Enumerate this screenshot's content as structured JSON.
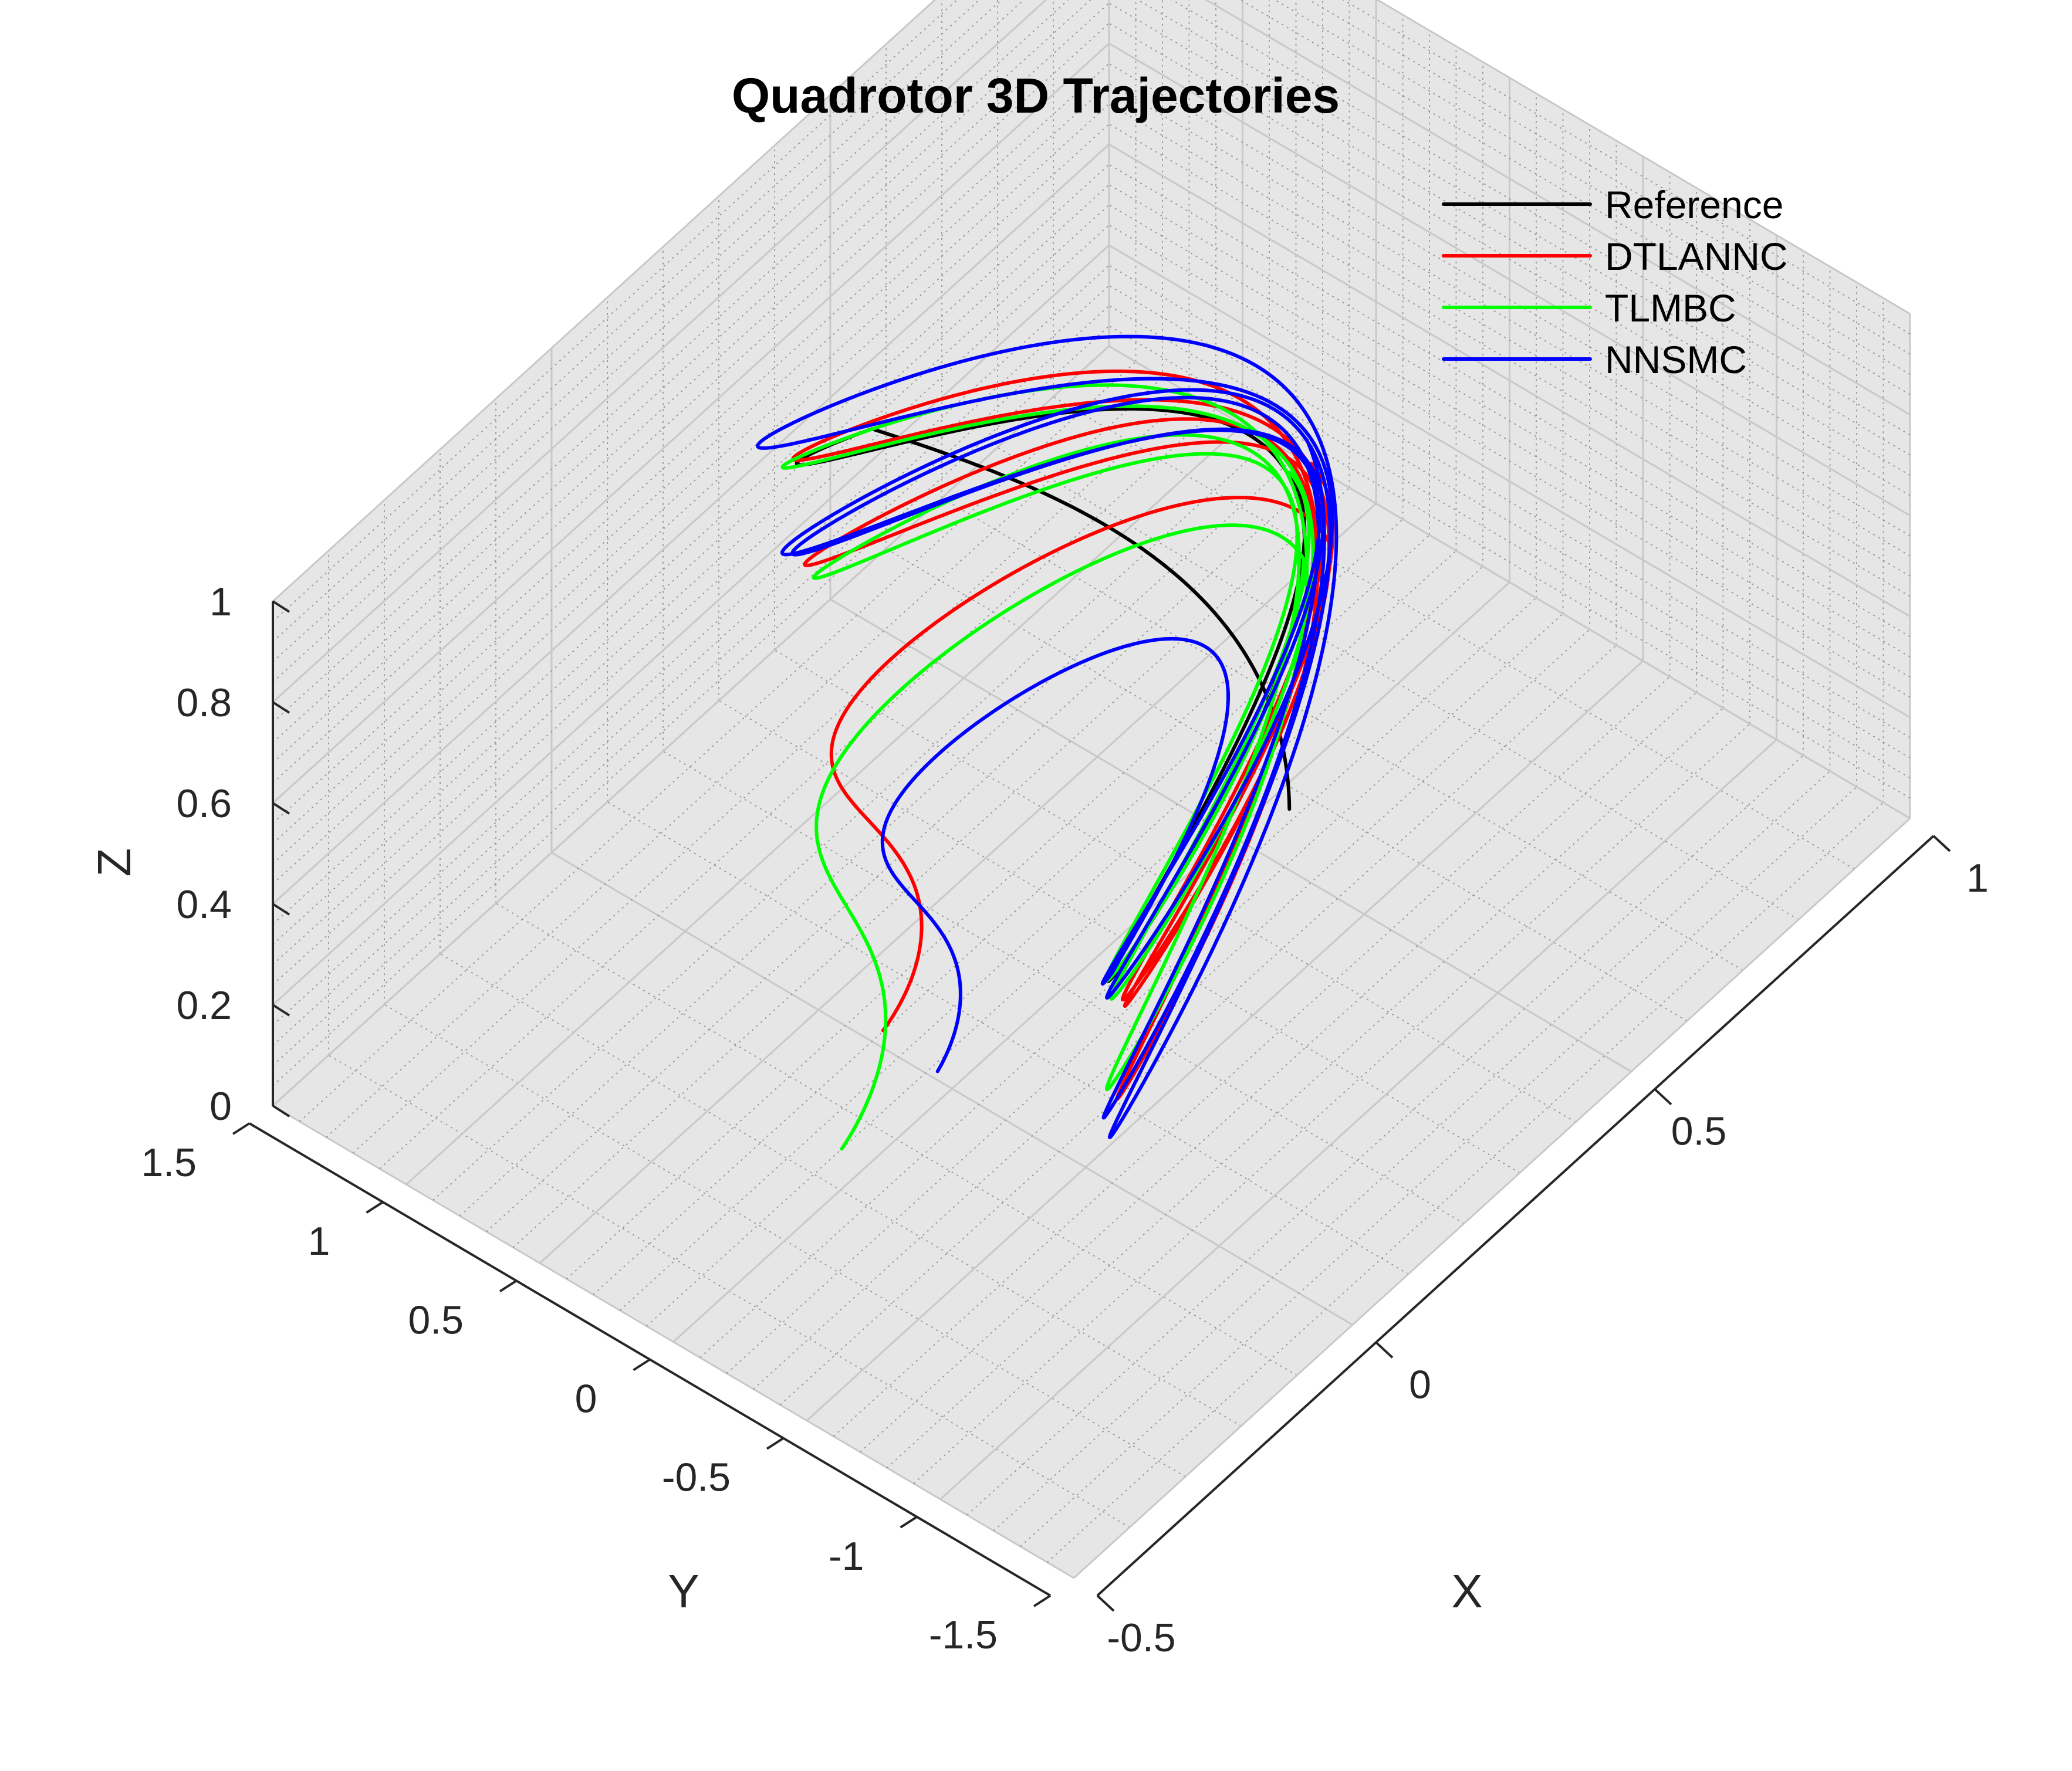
{
  "chart_data": {
    "type": "line",
    "projection": "3d",
    "title": "Quadrotor 3D Trajectories",
    "xlabel": "X",
    "ylabel": "Y",
    "zlabel": "Z",
    "xlim": [
      -0.5,
      1
    ],
    "ylim": [
      -1.5,
      1.5
    ],
    "zlim": [
      0,
      1
    ],
    "xticks": [
      "-0.5",
      "0",
      "0.5",
      "1"
    ],
    "yticks": [
      "-1.5",
      "-1",
      "-0.5",
      "0",
      "0.5",
      "1",
      "1.5"
    ],
    "zticks": [
      "0",
      "0.2",
      "0.4",
      "0.6",
      "0.8",
      "1"
    ],
    "grid": true,
    "minor_grid": true,
    "legend_position": "top-right",
    "series": [
      {
        "name": "Reference",
        "color": "#000000",
        "loops": 1,
        "figure8": {
          "cx": 0.3,
          "ax": 0.5,
          "ay": 1.0,
          "z0": 0.62,
          "az": 0.25,
          "phase_z": 0
        },
        "start": [
          0.15,
          -0.95,
          0.7
        ]
      },
      {
        "name": "DTLANNC",
        "color": "#ff0000",
        "loops": 3,
        "figure8": {
          "cx": 0.32,
          "ax": 0.52,
          "ay": 1.05,
          "z0": 0.6,
          "az": 0.26,
          "phase_z": 0.05
        },
        "start": [
          -0.1,
          0.05,
          0.2
        ]
      },
      {
        "name": "TLMBC",
        "color": "#00ff00",
        "loops": 3,
        "figure8": {
          "cx": 0.3,
          "ax": 0.5,
          "ay": 1.0,
          "z0": 0.61,
          "az": 0.25,
          "phase_z": -0.03
        },
        "start": [
          -0.15,
          0.1,
          0.0
        ]
      },
      {
        "name": "NNSMC",
        "color": "#0000ff",
        "loops": 4,
        "figure8": {
          "cx": 0.31,
          "ax": 0.55,
          "ay": 1.08,
          "z0": 0.63,
          "az": 0.28,
          "phase_z": 0.1
        },
        "start": [
          -0.05,
          -0.05,
          0.1
        ]
      }
    ]
  }
}
